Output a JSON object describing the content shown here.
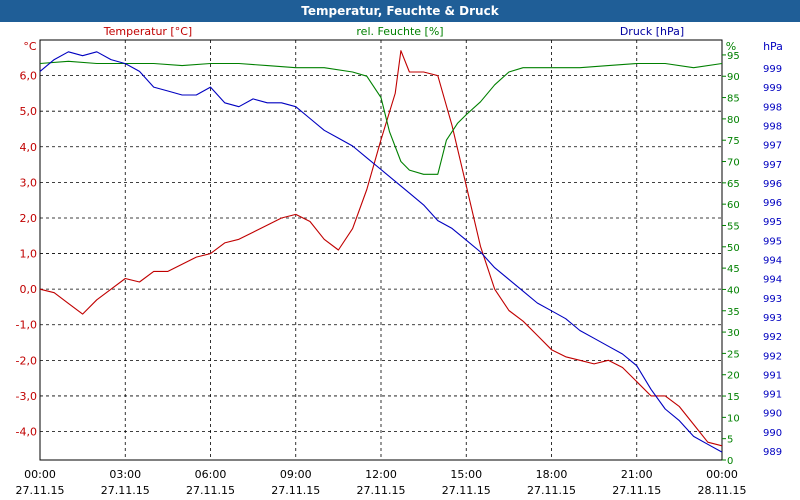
{
  "chart_data": {
    "type": "line",
    "title": "Temperatur, Feuchte & Druck",
    "legend": [
      "Temperatur [°C]",
      "rel. Feuchte [%]",
      "Druck [hPa]"
    ],
    "colors": {
      "temperature": "#c00000",
      "humidity": "#008000",
      "pressure": "#0000c0",
      "title_bg": "#1f5e97"
    },
    "x_axis": {
      "range_hours": [
        0,
        24
      ],
      "ticks": [
        {
          "hour": 0,
          "time": "00:00",
          "date": "27.11.15"
        },
        {
          "hour": 3,
          "time": "03:00",
          "date": "27.11.15"
        },
        {
          "hour": 6,
          "time": "06:00",
          "date": "27.11.15"
        },
        {
          "hour": 9,
          "time": "09:00",
          "date": "27.11.15"
        },
        {
          "hour": 12,
          "time": "12:00",
          "date": "27.11.15"
        },
        {
          "hour": 15,
          "time": "15:00",
          "date": "27.11.15"
        },
        {
          "hour": 18,
          "time": "18:00",
          "date": "27.11.15"
        },
        {
          "hour": 21,
          "time": "21:00",
          "date": "27.11.15"
        },
        {
          "hour": 24,
          "time": "00:00",
          "date": "28.11.15"
        }
      ]
    },
    "y_left": {
      "unit": "°C",
      "range": [
        -4.8,
        7.0
      ],
      "ticks": [
        {
          "v": 6,
          "t": "6,0"
        },
        {
          "v": 5,
          "t": "5,0"
        },
        {
          "v": 4,
          "t": "4,0"
        },
        {
          "v": 3,
          "t": "3,0"
        },
        {
          "v": 2,
          "t": "2,0"
        },
        {
          "v": 1,
          "t": "1,0"
        },
        {
          "v": 0,
          "t": "0,0"
        },
        {
          "v": -1,
          "t": "-1,0"
        },
        {
          "v": -2,
          "t": "-2,0"
        },
        {
          "v": -3,
          "t": "-3,0"
        },
        {
          "v": -4,
          "t": "-4,0"
        }
      ]
    },
    "y_humidity": {
      "unit": "%",
      "range": [
        0,
        98.5
      ],
      "ticks": [
        95,
        90,
        85,
        80,
        75,
        70,
        65,
        60,
        55,
        50,
        45,
        40,
        35,
        30,
        25,
        20,
        15,
        10,
        5,
        0
      ]
    },
    "y_pressure": {
      "unit": "hPa",
      "range": [
        988.9,
        999.6
      ],
      "tick_labels": [
        "999",
        "999",
        "998",
        "998",
        "997",
        "997",
        "996",
        "996",
        "995",
        "995",
        "994",
        "994",
        "993",
        "993",
        "992",
        "992",
        "991",
        "991",
        "990",
        "990",
        "989"
      ]
    },
    "series": [
      {
        "name": "Temperatur [°C]",
        "key": "temperature",
        "x": [
          0,
          0.5,
          1,
          1.5,
          2,
          2.5,
          3,
          3.5,
          4,
          4.5,
          5,
          5.5,
          6,
          6.5,
          7,
          7.5,
          8,
          8.5,
          9,
          9.5,
          10,
          10.5,
          11,
          11.5,
          12,
          12.5,
          12.7,
          13,
          13.5,
          14,
          14.5,
          15,
          15.5,
          16,
          16.5,
          17,
          17.5,
          18,
          18.5,
          19,
          19.5,
          20,
          20.5,
          21,
          21.5,
          22,
          22.5,
          23,
          23.5,
          24
        ],
        "values": [
          0.0,
          -0.1,
          -0.4,
          -0.7,
          -0.3,
          0.0,
          0.3,
          0.2,
          0.5,
          0.5,
          0.7,
          0.9,
          1.0,
          1.3,
          1.4,
          1.6,
          1.8,
          2.0,
          2.1,
          1.9,
          1.4,
          1.1,
          1.7,
          2.8,
          4.2,
          5.5,
          6.7,
          6.1,
          6.1,
          6.0,
          4.6,
          2.9,
          1.2,
          0.0,
          -0.6,
          -0.9,
          -1.3,
          -1.7,
          -1.9,
          -2.0,
          -2.1,
          -2.0,
          -2.2,
          -2.6,
          -3.0,
          -3.0,
          -3.3,
          -3.8,
          -4.3,
          -4.4
        ]
      },
      {
        "name": "rel. Feuchte [%]",
        "key": "humidity",
        "x": [
          0,
          1,
          2,
          3,
          4,
          5,
          6,
          7,
          8,
          9,
          10,
          11,
          11.5,
          12,
          12.3,
          12.7,
          13,
          13.5,
          14,
          14.3,
          14.7,
          15,
          15.5,
          16,
          16.5,
          17,
          18,
          19,
          20,
          21,
          22,
          23,
          24
        ],
        "values": [
          93,
          93.5,
          93,
          93,
          93,
          92.5,
          93,
          93,
          92.5,
          92,
          92,
          91,
          90,
          85,
          77,
          70,
          68,
          67,
          67,
          75,
          79,
          81,
          84,
          88,
          91,
          92,
          92,
          92,
          92.5,
          93,
          93,
          92,
          93
        ]
      },
      {
        "name": "Druck [hPa]",
        "key": "pressure",
        "x": [
          0,
          0.5,
          1,
          1.5,
          2,
          2.5,
          3,
          3.5,
          4,
          4.5,
          5,
          5.5,
          6,
          6.5,
          7,
          7.5,
          8,
          8.5,
          9,
          9.5,
          10,
          10.5,
          11,
          11.5,
          12,
          12.5,
          13,
          13.5,
          14,
          14.5,
          15,
          15.5,
          16,
          16.5,
          17,
          17.5,
          18,
          18.5,
          19,
          19.5,
          20,
          20.5,
          21,
          21.5,
          22,
          22.5,
          23,
          23.5,
          24
        ],
        "values": [
          998.8,
          999.1,
          999.3,
          999.2,
          999.3,
          999.1,
          999.0,
          998.8,
          998.4,
          998.3,
          998.2,
          998.2,
          998.4,
          998.0,
          997.9,
          998.1,
          998.0,
          998.0,
          997.9,
          997.6,
          997.3,
          997.1,
          996.9,
          996.6,
          996.3,
          996.0,
          995.7,
          995.4,
          995.0,
          994.8,
          994.5,
          994.2,
          993.8,
          993.5,
          993.2,
          992.9,
          992.7,
          992.5,
          992.2,
          992.0,
          991.8,
          991.6,
          991.3,
          990.7,
          990.2,
          989.9,
          989.5,
          989.3,
          989.1
        ]
      }
    ]
  }
}
